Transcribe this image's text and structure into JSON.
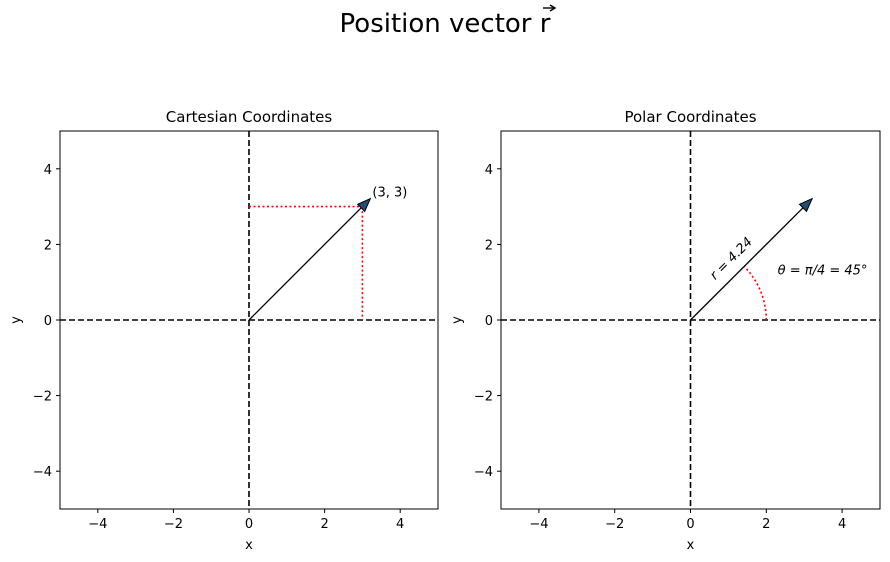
{
  "figure": {
    "title": "Position vector r"
  },
  "chart_data": [
    {
      "type": "scatter",
      "title": "Cartesian Coordinates",
      "xlabel": "x",
      "ylabel": "y",
      "xlim": [
        -5,
        5
      ],
      "ylim": [
        -5,
        5
      ],
      "xticks": [
        "−4",
        "−2",
        "0",
        "2",
        "4"
      ],
      "yticks": [
        "−4",
        "−2",
        "0",
        "2",
        "4"
      ],
      "axes_lines": "dashed black at x=0 and y=0",
      "vector": {
        "from": [
          0,
          0
        ],
        "to": [
          3,
          3
        ],
        "color": "#1f4e79"
      },
      "projections": {
        "color": "#ff0000",
        "style": "dotted",
        "to_x": 3,
        "to_y": 3
      },
      "annotations": [
        {
          "text": "(3, 3)",
          "x": 3,
          "y": 3
        }
      ]
    },
    {
      "type": "scatter",
      "title": "Polar Coordinates",
      "xlabel": "x",
      "ylabel": "y",
      "xlim": [
        -5,
        5
      ],
      "ylim": [
        -5,
        5
      ],
      "xticks": [
        "−4",
        "−2",
        "0",
        "2",
        "4"
      ],
      "yticks": [
        "−4",
        "−2",
        "0",
        "2",
        "4"
      ],
      "axes_lines": "dashed black at x=0 and y=0",
      "vector": {
        "from": [
          0,
          0
        ],
        "to": [
          3,
          3
        ],
        "color": "#1f4e79"
      },
      "arc": {
        "radius": 2,
        "theta_start_deg": 0,
        "theta_end_deg": 45,
        "color": "#ff0000",
        "style": "dotted"
      },
      "annotations": [
        {
          "text": "r = 4.24",
          "x": 1.0,
          "y": 1.5
        },
        {
          "text": "θ = π/4 = 45°",
          "x": 2.3,
          "y": 1.2
        }
      ]
    }
  ]
}
